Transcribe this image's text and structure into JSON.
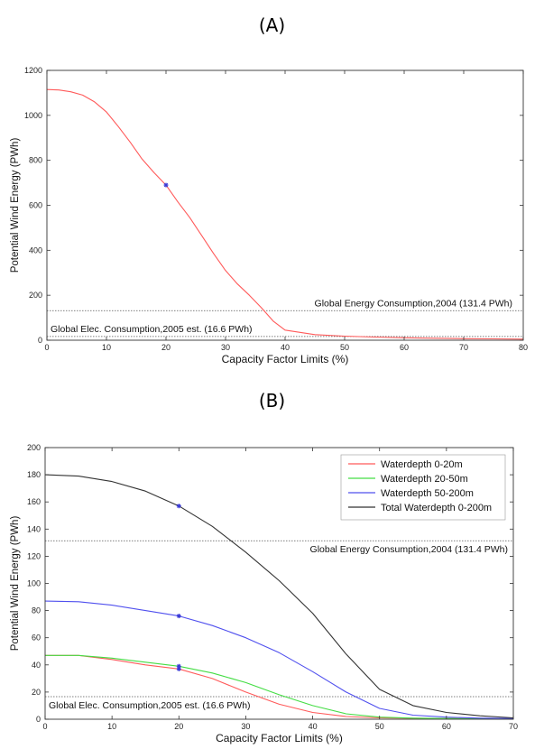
{
  "panels": {
    "a_label": "(A)",
    "b_label": "(B)"
  },
  "chart_data": [
    {
      "type": "line",
      "panel": "(A)",
      "xlabel": "Capacity Factor Limits (%)",
      "ylabel": "Potential Wind Energy (PWh)",
      "xlim": [
        0,
        80
      ],
      "ylim": [
        0,
        1200
      ],
      "xticks": [
        0,
        10,
        20,
        30,
        40,
        50,
        60,
        70,
        80
      ],
      "yticks": [
        0,
        200,
        400,
        600,
        800,
        1000,
        1200
      ],
      "series": [
        {
          "color": "#ff5a5a",
          "x": [
            0,
            2,
            4,
            6,
            8,
            10,
            12,
            14,
            16,
            18,
            20,
            22,
            24,
            26,
            28,
            30,
            32,
            34,
            36,
            38,
            40,
            45,
            50,
            55,
            60,
            65,
            70,
            75,
            80
          ],
          "y": [
            1115,
            1113,
            1105,
            1090,
            1060,
            1015,
            950,
            880,
            805,
            745,
            690,
            615,
            545,
            465,
            385,
            310,
            250,
            200,
            145,
            85,
            45,
            25,
            18,
            14,
            11,
            9,
            7,
            6,
            5
          ],
          "marker": {
            "x": 20,
            "y": 690,
            "color": "#3b3bd6"
          }
        }
      ],
      "reference_lines": [
        {
          "y": 131.4,
          "label": "Global Energy Consumption,2004 (131.4 PWh)"
        },
        {
          "y": 16.6,
          "label": "Global Elec. Consumption,2005 est. (16.6 PWh)"
        }
      ],
      "grid": false
    },
    {
      "type": "line",
      "panel": "(B)",
      "xlabel": "Capacity Factor Limits (%)",
      "ylabel": "Potential Wind Energy (PWh)",
      "xlim": [
        0,
        70
      ],
      "ylim": [
        0,
        200
      ],
      "xticks": [
        0,
        10,
        20,
        30,
        40,
        50,
        60,
        70
      ],
      "yticks": [
        0,
        20,
        40,
        60,
        80,
        100,
        120,
        140,
        160,
        180,
        200
      ],
      "legend_position": "top-right",
      "series": [
        {
          "name": "Waterdepth 0-20m",
          "color": "#ff5a5a",
          "x": [
            0,
            5,
            10,
            15,
            20,
            25,
            30,
            35,
            40,
            45,
            50,
            55,
            60,
            65,
            70
          ],
          "y": [
            47,
            47,
            44,
            40,
            37,
            30,
            20,
            11,
            5,
            2,
            1,
            0.7,
            0.5,
            0.3,
            0.2
          ],
          "marker": {
            "x": 20,
            "y": 37,
            "color": "#3b3bd6"
          }
        },
        {
          "name": "Waterdepth 20-50m",
          "color": "#44dd44",
          "x": [
            0,
            5,
            10,
            15,
            20,
            25,
            30,
            35,
            40,
            45,
            50,
            55,
            60,
            65,
            70
          ],
          "y": [
            47,
            47,
            45,
            42,
            39,
            34,
            27,
            18,
            10,
            4,
            1.5,
            0.8,
            0.5,
            0.3,
            0.2
          ],
          "marker": {
            "x": 20,
            "y": 39,
            "color": "#3b3bd6"
          }
        },
        {
          "name": "Waterdepth 50-200m",
          "color": "#5050ee",
          "x": [
            0,
            5,
            10,
            15,
            20,
            25,
            30,
            35,
            40,
            45,
            50,
            55,
            60,
            65,
            70
          ],
          "y": [
            87,
            86.5,
            84,
            80,
            76,
            69,
            60,
            49,
            35,
            20,
            8,
            3,
            1.5,
            0.8,
            0.5
          ],
          "marker": {
            "x": 20,
            "y": 76,
            "color": "#3b3bd6"
          }
        },
        {
          "name": "Total Waterdepth 0-200m",
          "color": "#333333",
          "x": [
            0,
            5,
            10,
            15,
            20,
            25,
            30,
            35,
            40,
            45,
            50,
            55,
            60,
            65,
            70
          ],
          "y": [
            180,
            179,
            175,
            168,
            157,
            142,
            123,
            102,
            78,
            48,
            22,
            10,
            5,
            2.5,
            1
          ],
          "marker": {
            "x": 20,
            "y": 157,
            "color": "#3b3bd6"
          }
        }
      ],
      "reference_lines": [
        {
          "y": 131.4,
          "label": "Global Energy Consumption,2004 (131.4 PWh)"
        },
        {
          "y": 16.6,
          "label": "Global Elec. Consumption,2005 est. (16.6 PWh)"
        }
      ],
      "grid": false
    }
  ]
}
